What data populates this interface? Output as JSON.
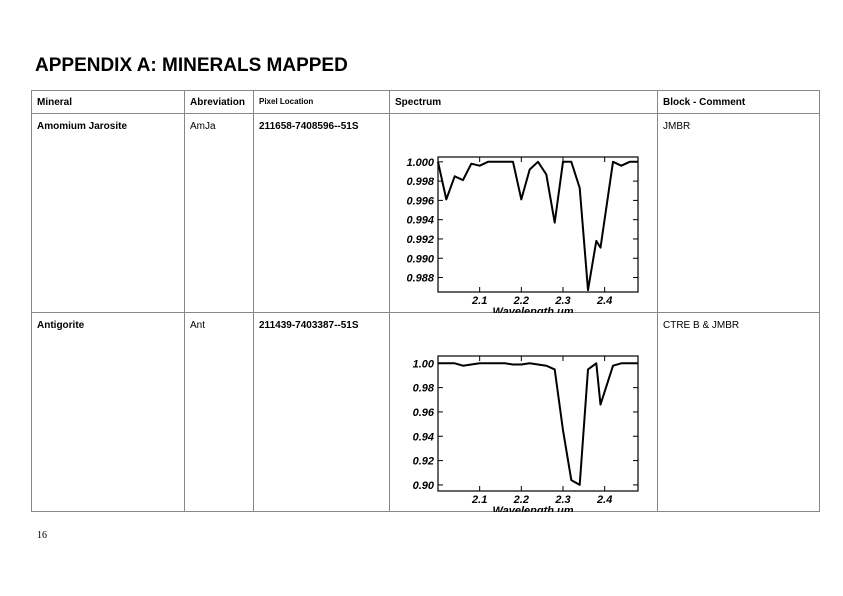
{
  "page": {
    "title": "APPENDIX A: MINERALS MAPPED",
    "page_number": "16"
  },
  "table": {
    "headers": {
      "mineral": "Mineral",
      "abbreviation": "Abreviation",
      "pixel": "Pixel Location",
      "spectrum": "Spectrum",
      "comment": "Block - Comment"
    },
    "rows": [
      {
        "mineral": "Amomium Jarosite",
        "abbreviation": "AmJa",
        "pixel": "211658-7408596--51S",
        "comment": "JMBR"
      },
      {
        "mineral": "Antigorite",
        "abbreviation": "Ant",
        "pixel": "211439-7403387--51S",
        "comment": "CTRE B & JMBR"
      }
    ]
  },
  "chart_data": [
    {
      "type": "line",
      "xlabel": "Wavelength um",
      "ylabel": "",
      "xlim": [
        2.0,
        2.48
      ],
      "ylim": [
        0.9865,
        1.0005
      ],
      "x_ticks": [
        2.1,
        2.2,
        2.3,
        2.4
      ],
      "x_tick_labels": [
        "2.1",
        "2.2",
        "2.3",
        "2.4"
      ],
      "y_ticks": [
        1.0,
        0.998,
        0.996,
        0.994,
        0.992,
        0.99,
        0.988
      ],
      "y_tick_labels": [
        "1.000",
        "0.998",
        "0.996",
        "0.994",
        "0.992",
        "0.990",
        "0.988"
      ],
      "series": [
        {
          "x": [
            2.0,
            2.02,
            2.04,
            2.06,
            2.08,
            2.1,
            2.12,
            2.14,
            2.16,
            2.18,
            2.2,
            2.22,
            2.24,
            2.26,
            2.28,
            2.3,
            2.32,
            2.34,
            2.36,
            2.38,
            2.39,
            2.42,
            2.44,
            2.46,
            2.48
          ],
          "y": [
            1.0,
            0.9961,
            0.9985,
            0.9981,
            0.9998,
            0.9996,
            1.0,
            1.0,
            1.0,
            1.0,
            0.9961,
            0.9992,
            1.0,
            0.9987,
            0.9937,
            1.0,
            1.0,
            0.9973,
            0.9867,
            0.9918,
            0.9911,
            1.0,
            0.9996,
            1.0,
            1.0
          ]
        }
      ]
    },
    {
      "type": "line",
      "xlabel": "Wavelength um",
      "ylabel": "",
      "xlim": [
        2.0,
        2.48
      ],
      "ylim": [
        0.895,
        1.006
      ],
      "x_ticks": [
        2.1,
        2.2,
        2.3,
        2.4
      ],
      "x_tick_labels": [
        "2.1",
        "2.2",
        "2.3",
        "2.4"
      ],
      "y_ticks": [
        1.0,
        0.98,
        0.96,
        0.94,
        0.92,
        0.9
      ],
      "y_tick_labels": [
        "1.00",
        "0.98",
        "0.96",
        "0.94",
        "0.92",
        "0.90"
      ],
      "series": [
        {
          "x": [
            2.0,
            2.02,
            2.04,
            2.06,
            2.08,
            2.1,
            2.12,
            2.14,
            2.16,
            2.18,
            2.2,
            2.22,
            2.24,
            2.26,
            2.28,
            2.3,
            2.32,
            2.34,
            2.36,
            2.38,
            2.39,
            2.42,
            2.44,
            2.46,
            2.48
          ],
          "y": [
            1.0,
            1.0,
            1.0,
            0.998,
            0.999,
            1.0,
            1.0,
            1.0,
            1.0,
            0.999,
            0.999,
            1.0,
            0.999,
            0.998,
            0.995,
            0.945,
            0.904,
            0.9,
            0.995,
            1.0,
            0.966,
            0.998,
            1.0,
            1.0,
            1.0
          ]
        }
      ]
    }
  ]
}
